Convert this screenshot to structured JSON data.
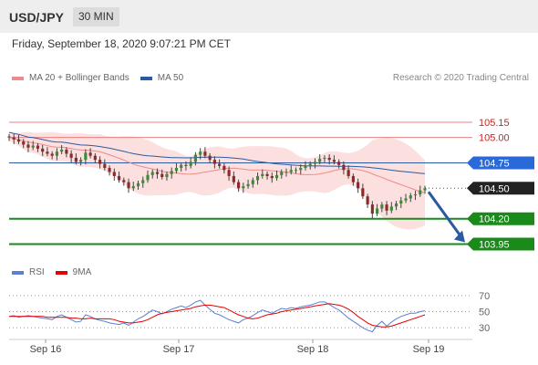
{
  "header": {
    "pair": "USD/JPY",
    "timeframe": "30 MIN"
  },
  "datetime": "Friday, September 18, 2020 9:07:21 PM CET",
  "legend": {
    "ma20": "MA 20 + Bollinger Bands",
    "ma20_color": "#f08a8a",
    "ma50": "MA 50",
    "ma50_color": "#2a5aa0",
    "credit": "Research © 2020 Trading Central"
  },
  "rsi_legend": {
    "rsi": "RSI",
    "rsi_color": "#5b7fd6",
    "ma9": "9MA",
    "ma9_color": "#e60000"
  },
  "chart_data": {
    "type": "candlestick",
    "ylim": [
      103.82,
      105.5
    ],
    "x_ticks": [
      "Sep 16",
      "Sep 17",
      "Sep 18",
      "Sep 19"
    ],
    "levels": [
      {
        "value": 105.15,
        "label": "105.15",
        "kind": "resistance"
      },
      {
        "value": 105.0,
        "label": "105.00",
        "kind": "resistance"
      },
      {
        "value": 104.75,
        "label": "104.75",
        "kind": "pivot"
      },
      {
        "value": 104.2,
        "label": "104.20",
        "kind": "support"
      },
      {
        "value": 103.95,
        "label": "103.95",
        "kind": "support"
      }
    ],
    "last_price": {
      "value": 104.5,
      "label": "104.50"
    },
    "close_series": [
      105.0,
      104.98,
      104.96,
      104.93,
      104.9,
      104.92,
      104.89,
      104.86,
      104.84,
      104.82,
      104.86,
      104.88,
      104.84,
      104.8,
      104.76,
      104.78,
      104.85,
      104.82,
      104.78,
      104.74,
      104.7,
      104.66,
      104.62,
      104.58,
      104.56,
      104.5,
      104.52,
      104.55,
      104.58,
      104.63,
      104.66,
      104.64,
      104.61,
      104.64,
      104.67,
      104.7,
      104.73,
      104.72,
      104.76,
      104.83,
      104.86,
      104.82,
      104.78,
      104.74,
      104.72,
      104.68,
      104.62,
      104.56,
      104.5,
      104.52,
      104.54,
      104.58,
      104.62,
      104.64,
      104.62,
      104.6,
      104.63,
      104.66,
      104.66,
      104.68,
      104.68,
      104.7,
      104.72,
      104.74,
      104.76,
      104.79,
      104.8,
      104.78,
      104.76,
      104.73,
      104.68,
      104.62,
      104.56,
      104.5,
      104.42,
      104.34,
      104.25,
      104.3,
      104.34,
      104.28,
      104.32,
      104.35,
      104.38,
      104.4,
      104.43,
      104.44,
      104.48,
      104.5
    ],
    "rsi": {
      "ticks": [
        70,
        50,
        30
      ],
      "ylim": [
        20,
        80
      ],
      "values": [
        44,
        45,
        43,
        44,
        45,
        44,
        43,
        42,
        41,
        40,
        44,
        46,
        43,
        40,
        37,
        38,
        46,
        44,
        41,
        39,
        38,
        36,
        35,
        34,
        36,
        33,
        37,
        41,
        44,
        48,
        52,
        50,
        47,
        50,
        53,
        55,
        57,
        55,
        58,
        62,
        64,
        58,
        53,
        48,
        46,
        43,
        40,
        38,
        36,
        40,
        42,
        45,
        49,
        52,
        50,
        48,
        51,
        54,
        53,
        55,
        54,
        56,
        57,
        58,
        60,
        62,
        62,
        59,
        55,
        52,
        47,
        42,
        38,
        34,
        30,
        27,
        25,
        33,
        38,
        32,
        37,
        41,
        44,
        46,
        48,
        48,
        50,
        51
      ],
      "ma9": [
        44,
        44,
        44,
        44,
        44,
        44,
        44,
        44,
        43,
        43,
        43,
        43,
        43,
        42,
        42,
        41,
        41,
        42,
        41,
        41,
        41,
        41,
        40,
        38,
        37,
        36,
        36,
        37,
        38,
        40,
        43,
        46,
        48,
        49,
        50,
        51,
        52,
        53,
        54,
        56,
        57,
        58,
        58,
        57,
        56,
        55,
        52,
        49,
        46,
        44,
        42,
        41,
        42,
        44,
        46,
        47,
        48,
        50,
        51,
        52,
        53,
        54,
        55,
        56,
        57,
        58,
        59,
        60,
        59,
        58,
        56,
        53,
        49,
        44,
        40,
        36,
        33,
        32,
        31,
        31,
        32,
        34,
        36,
        38,
        40,
        42,
        44,
        46
      ]
    }
  }
}
